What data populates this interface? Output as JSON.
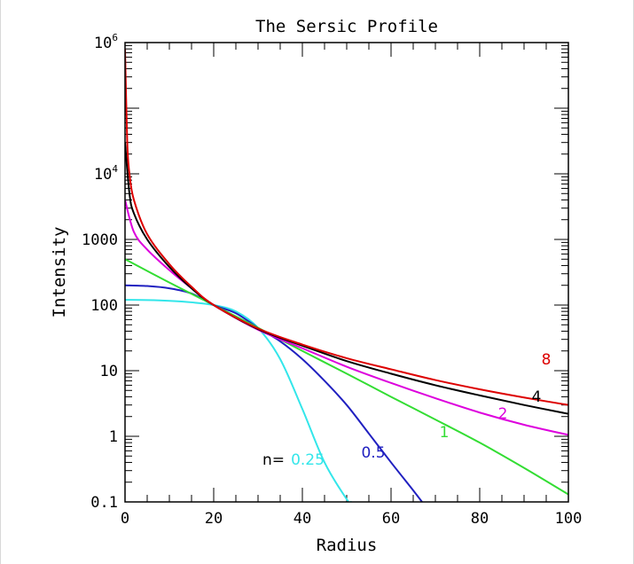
{
  "chart_data": {
    "type": "line",
    "title": "The Sersic Profile",
    "xlabel": "Radius",
    "ylabel": "Intensity",
    "xlim": [
      0,
      100
    ],
    "ylim": [
      0.1,
      1000000
    ],
    "yscale": "log",
    "grid": false,
    "x_ticks": [
      {
        "value": 0,
        "label": "0"
      },
      {
        "value": 20,
        "label": "20"
      },
      {
        "value": 40,
        "label": "40"
      },
      {
        "value": 60,
        "label": "60"
      },
      {
        "value": 80,
        "label": "80"
      },
      {
        "value": 100,
        "label": "100"
      }
    ],
    "y_ticks": [
      {
        "value": 0.1,
        "label": "0.1"
      },
      {
        "value": 1,
        "label": "1"
      },
      {
        "value": 10,
        "label": "10"
      },
      {
        "value": 100,
        "label": "100"
      },
      {
        "value": 1000,
        "label": "1000"
      },
      {
        "value": 10000,
        "label": "10",
        "exp": "4"
      },
      {
        "value": 1000000,
        "label": "10",
        "exp": "6"
      }
    ],
    "n_label_prefix": "n=",
    "series": [
      {
        "name": "0.25",
        "color": "#33e6ea",
        "n": 0.25,
        "x": [
          0,
          5,
          10,
          15,
          20,
          25,
          30,
          35,
          40,
          45,
          50,
          51
        ],
        "y": [
          120,
          119,
          116,
          110,
          100,
          80,
          45,
          15,
          2.6,
          0.4,
          0.11,
          0.1
        ]
      },
      {
        "name": "0.5",
        "color": "#2020c0",
        "n": 0.5,
        "x": [
          0,
          5,
          10,
          15,
          20,
          25,
          30,
          35,
          40,
          45,
          50,
          55,
          60,
          65,
          67
        ],
        "y": [
          200,
          195,
          180,
          150,
          100,
          75,
          45,
          28,
          15,
          7,
          3,
          1.1,
          0.4,
          0.15,
          0.1
        ]
      },
      {
        "name": "1",
        "color": "#33dd33",
        "n": 1,
        "x": [
          0,
          10,
          20,
          30,
          40,
          50,
          60,
          70,
          80,
          90,
          100
        ],
        "y": [
          500,
          220,
          100,
          45,
          20,
          9,
          4,
          1.8,
          0.8,
          0.33,
          0.13
        ]
      },
      {
        "name": "2",
        "color": "#dd00dd",
        "n": 2,
        "x": [
          0,
          2,
          5,
          10,
          15,
          20,
          30,
          40,
          50,
          60,
          70,
          80,
          90,
          100
        ],
        "y": [
          4000,
          1300,
          700,
          340,
          180,
          100,
          42,
          22,
          11.5,
          6.5,
          3.8,
          2.3,
          1.5,
          1.05
        ]
      },
      {
        "name": "4",
        "color": "#000000",
        "n": 4,
        "x": [
          0,
          1,
          2,
          5,
          10,
          15,
          20,
          30,
          40,
          50,
          60,
          70,
          80,
          90,
          100
        ],
        "y": [
          30000,
          5000,
          2500,
          1000,
          380,
          180,
          100,
          43,
          24,
          14,
          9,
          6,
          4.2,
          3,
          2.2
        ]
      },
      {
        "name": "8",
        "color": "#dd0000",
        "n": 8,
        "x": [
          0,
          0.5,
          1,
          2,
          5,
          10,
          15,
          20,
          30,
          40,
          50,
          60,
          70,
          80,
          90,
          100
        ],
        "y": [
          800000,
          30000,
          10000,
          4000,
          1200,
          420,
          190,
          100,
          44,
          25,
          15.5,
          10.5,
          7.2,
          5.2,
          3.9,
          3.0
        ]
      }
    ]
  }
}
